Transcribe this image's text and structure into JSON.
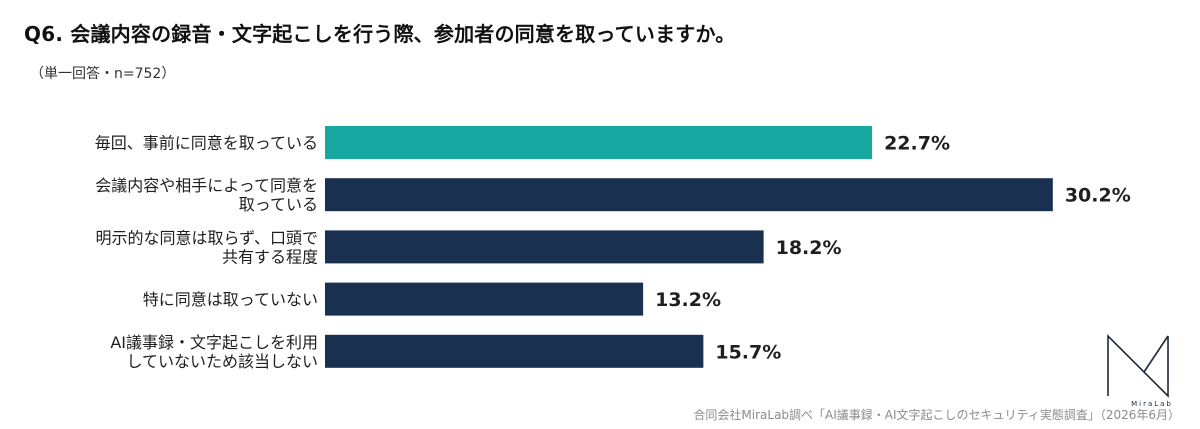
{
  "header": {
    "title": "Q6. 会議内容の録音・文字起こしを行う際、参加者の同意を取っていますか。",
    "subtitle": "（単一回答・n=752）"
  },
  "footer": {
    "source": "合同会社MiraLab調べ「AI議事録・AI文字起こしのセキュリティ実態調査」（2026年6月）"
  },
  "logo": {
    "text": "MiraLab",
    "icon": "miralab-logo"
  },
  "colors": {
    "highlight": "#17a9a1",
    "default": "#1a3050"
  },
  "chart_data": {
    "type": "bar",
    "orientation": "horizontal",
    "categories": [
      [
        "毎回、事前に同意を取っている"
      ],
      [
        "会議内容や相手によって同意を",
        "取っている"
      ],
      [
        "明示的な同意は取らず、口頭で",
        "共有する程度"
      ],
      [
        "特に同意は取っていない"
      ],
      [
        "AI議事録・文字起こしを利用",
        "していないため該当しない"
      ]
    ],
    "values": [
      22.7,
      30.2,
      18.2,
      13.2,
      15.7
    ],
    "value_labels": [
      "22.7%",
      "30.2%",
      "18.2%",
      "13.2%",
      "15.7%"
    ],
    "highlight_index": 0,
    "unit": "%",
    "grid": false,
    "legend": "none"
  }
}
